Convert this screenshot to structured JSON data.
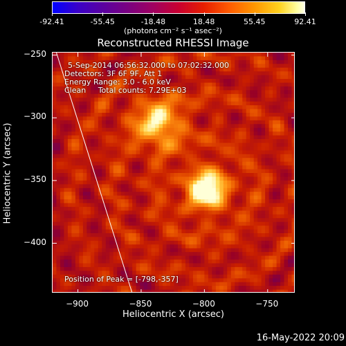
{
  "colorbar": {
    "ticks": [
      "-92.41",
      "-55.45",
      "-18.48",
      "18.48",
      "55.45",
      "92.41"
    ],
    "min": -92.41,
    "max": 92.41,
    "units": "(photons cm⁻² s⁻¹ asec⁻²)"
  },
  "chart_data": {
    "type": "heatmap",
    "title": "Reconstructed RHESSI Image",
    "xlabel": "Heliocentric X (arcsec)",
    "ylabel": "Heliocentric Y (arcsec)",
    "xlim": [
      -920,
      -728
    ],
    "ylim": [
      -440,
      -248
    ],
    "xticks": [
      -900,
      -850,
      -800,
      -750
    ],
    "yticks": [
      -250,
      -300,
      -350,
      -400
    ],
    "xtick_labels": [
      "−900",
      "−850",
      "−800",
      "−750"
    ],
    "ytick_labels": [
      "−250",
      "−300",
      "−350",
      "−400"
    ],
    "colormap": "RHESSI (blue-purple-red-orange-yellow-white)",
    "peak": {
      "x": -798,
      "y": -357
    },
    "secondary_source": {
      "x": -836,
      "y": -305
    },
    "solar_limb": {
      "x_at_top": -917,
      "x_at_bottom": -857
    }
  },
  "annotations": {
    "time_range": "5-Sep-2014 06:56:32.000 to 07:02:32.000",
    "detectors": "Detectors: 3F 6F 9F, Att 1",
    "energy": "Energy Range: 3.0 - 6.0 keV",
    "method": "Clean     Total counts: 7.29E+03",
    "peak_position": "Position of Peak = [-798,-357]"
  },
  "footer": {
    "date": "16-May-2022 20:09"
  }
}
